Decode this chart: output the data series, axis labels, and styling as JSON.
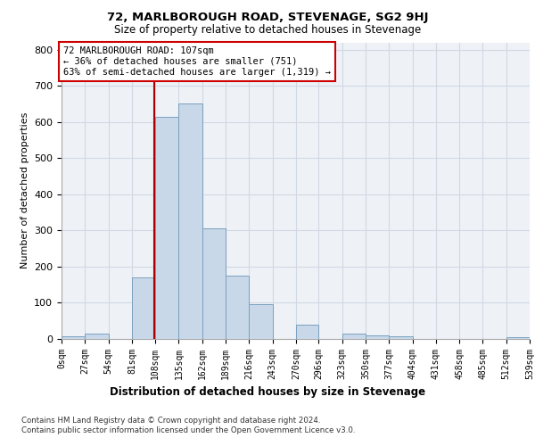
{
  "title": "72, MARLBOROUGH ROAD, STEVENAGE, SG2 9HJ",
  "subtitle": "Size of property relative to detached houses in Stevenage",
  "xlabel": "Distribution of detached houses by size in Stevenage",
  "ylabel": "Number of detached properties",
  "bin_edges": [
    0,
    27,
    54,
    81,
    108,
    135,
    162,
    189,
    216,
    243,
    270,
    296,
    323,
    350,
    377,
    404,
    431,
    458,
    485,
    512,
    539
  ],
  "bar_heights": [
    8,
    15,
    0,
    170,
    615,
    650,
    305,
    175,
    95,
    0,
    40,
    0,
    15,
    10,
    8,
    0,
    0,
    0,
    0,
    4
  ],
  "bar_color": "#c8d8e8",
  "bar_edgecolor": "#7aa0be",
  "property_size": 107,
  "vline_color": "#aa0000",
  "annotation_text": "72 MARLBOROUGH ROAD: 107sqm\n← 36% of detached houses are smaller (751)\n63% of semi-detached houses are larger (1,319) →",
  "annotation_box_edgecolor": "#cc0000",
  "annotation_box_facecolor": "#ffffff",
  "ylim": [
    0,
    820
  ],
  "yticks": [
    0,
    100,
    200,
    300,
    400,
    500,
    600,
    700,
    800
  ],
  "footer": "Contains HM Land Registry data © Crown copyright and database right 2024.\nContains public sector information licensed under the Open Government Licence v3.0.",
  "grid_color": "#d0d8e4",
  "background_color": "#eef2f7"
}
